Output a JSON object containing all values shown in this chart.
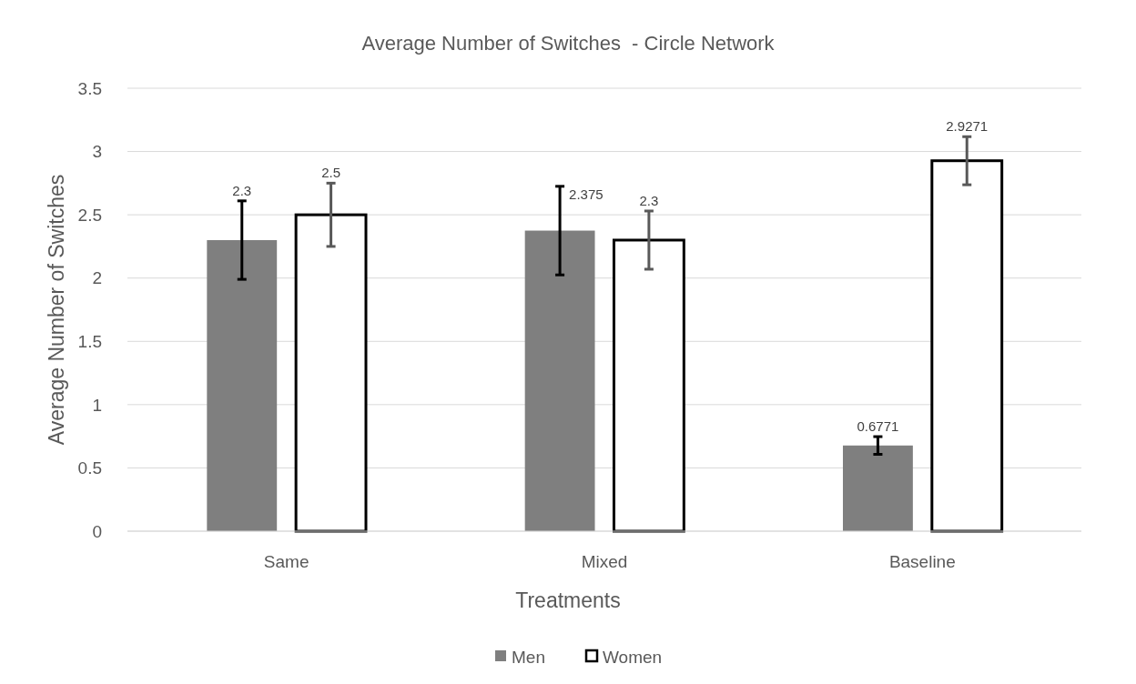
{
  "chart_data": {
    "type": "bar",
    "title": "Average Number of Switches  - Circle Network",
    "xlabel": "Treatments",
    "ylabel": "Average Number of Switches",
    "categories": [
      "Same",
      "Mixed",
      "Baseline"
    ],
    "series": [
      {
        "name": "Men",
        "color": "#7f7f7f",
        "values": [
          2.3,
          2.375,
          0.6771
        ],
        "errors": [
          0.31,
          0.35,
          0.07
        ]
      },
      {
        "name": "Women",
        "color": "#ffffff",
        "values": [
          2.5,
          2.3,
          2.9271
        ],
        "errors": [
          0.25,
          0.23,
          0.19
        ]
      }
    ],
    "ylim": [
      0,
      3.5
    ],
    "yticks": [
      0,
      0.5,
      1,
      1.5,
      2,
      2.5,
      3,
      3.5
    ],
    "grid": "y",
    "legend": "bottom",
    "data_labels": true
  }
}
